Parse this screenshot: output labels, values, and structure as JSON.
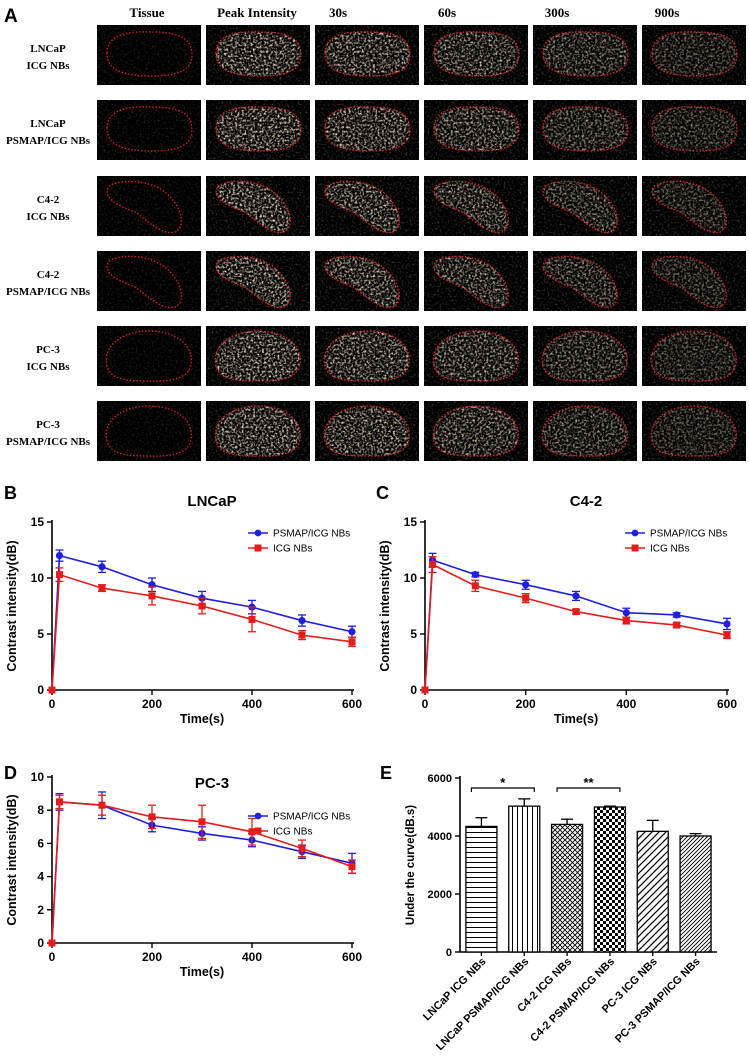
{
  "panel_a": {
    "label": "A",
    "columns": [
      "Tissue",
      "Peak Intensity",
      "30s",
      "60s",
      "300s",
      "900s"
    ],
    "rows": [
      {
        "line1": "LNCaP",
        "line2": "ICG NBs",
        "shape": "oval"
      },
      {
        "line1": "LNCaP",
        "line2": "PSMAP/ICG NBs",
        "shape": "oval"
      },
      {
        "line1": "C4-2",
        "line2": "ICG NBs",
        "shape": "c42"
      },
      {
        "line1": "C4-2",
        "line2": "PSMAP/ICG NBs",
        "shape": "c42"
      },
      {
        "line1": "PC-3",
        "line2": "ICG NBs",
        "shape": "pc3"
      },
      {
        "line1": "PC-3",
        "line2": "PSMAP/ICG NBs",
        "shape": "pc3"
      }
    ],
    "colors": {
      "background": "#000000",
      "speckle": "#e8c8a0",
      "roi": "#e0202a"
    }
  },
  "chart_data": [
    {
      "panel": "B",
      "type": "line",
      "title": "LNCaP",
      "xlabel": "Time(s)",
      "ylabel": "Contrast intensity(dB)",
      "xlim": [
        0,
        600
      ],
      "ylim": [
        0,
        15
      ],
      "xticks": [
        0,
        200,
        400,
        600
      ],
      "yticks": [
        0,
        5,
        10,
        15
      ],
      "x": [
        0,
        15,
        100,
        200,
        300,
        400,
        500,
        600
      ],
      "legend": "top-right",
      "series": [
        {
          "name": "PSMAP/ICG NBs",
          "color": "#1f1fe0",
          "marker": "circle",
          "values": [
            0,
            12.0,
            11.0,
            9.4,
            8.2,
            7.4,
            6.2,
            5.2
          ],
          "errors": [
            0,
            0.5,
            0.5,
            0.6,
            0.6,
            0.6,
            0.5,
            0.5
          ]
        },
        {
          "name": "ICG NBs",
          "color": "#e51c1c",
          "marker": "square",
          "values": [
            0,
            10.3,
            9.1,
            8.4,
            7.5,
            6.3,
            4.9,
            4.3
          ],
          "errors": [
            0,
            0.6,
            0.3,
            0.8,
            0.7,
            1.1,
            0.4,
            0.4
          ]
        }
      ]
    },
    {
      "panel": "C",
      "type": "line",
      "title": "C4-2",
      "xlabel": "Time(s)",
      "ylabel": "Contrast intensity(dB)",
      "xlim": [
        0,
        600
      ],
      "ylim": [
        0,
        15
      ],
      "xticks": [
        0,
        200,
        400,
        600
      ],
      "yticks": [
        0,
        5,
        10,
        15
      ],
      "x": [
        0,
        15,
        100,
        200,
        300,
        400,
        500,
        600
      ],
      "legend": "top-right",
      "series": [
        {
          "name": "PSMAP/ICG NBs",
          "color": "#1f1fe0",
          "marker": "circle",
          "values": [
            0,
            11.6,
            10.3,
            9.4,
            8.4,
            6.9,
            6.7,
            5.9
          ],
          "errors": [
            0,
            0.6,
            0.2,
            0.4,
            0.4,
            0.4,
            0.2,
            0.5
          ]
        },
        {
          "name": "ICG NBs",
          "color": "#e51c1c",
          "marker": "square",
          "values": [
            0,
            11.2,
            9.3,
            8.2,
            7.0,
            6.2,
            5.8,
            4.9
          ],
          "errors": [
            0,
            0.7,
            0.5,
            0.4,
            0.2,
            0.3,
            0.2,
            0.3
          ]
        }
      ]
    },
    {
      "panel": "D",
      "type": "line",
      "title": "PC-3",
      "xlabel": "Time(s)",
      "ylabel": "Contrast intensity(dB)",
      "xlim": [
        0,
        600
      ],
      "ylim": [
        0,
        10
      ],
      "xticks": [
        0,
        200,
        400,
        600
      ],
      "yticks": [
        0,
        2,
        4,
        6,
        8,
        10
      ],
      "x": [
        0,
        15,
        100,
        200,
        300,
        400,
        500,
        600
      ],
      "legend": "top-right",
      "series": [
        {
          "name": "PSMAP/ICG NBs",
          "color": "#1f1fe0",
          "marker": "circle",
          "values": [
            0,
            8.5,
            8.3,
            7.1,
            6.6,
            6.2,
            5.5,
            4.8
          ],
          "errors": [
            0,
            0.5,
            0.8,
            0.4,
            0.4,
            0.4,
            0.4,
            0.6
          ]
        },
        {
          "name": "ICG NBs",
          "color": "#e51c1c",
          "marker": "square",
          "values": [
            0,
            8.5,
            8.3,
            7.6,
            7.3,
            6.7,
            5.7,
            4.6
          ],
          "errors": [
            0,
            0.4,
            0.6,
            0.7,
            1.0,
            0.8,
            0.5,
            0.4
          ]
        }
      ]
    },
    {
      "panel": "E",
      "type": "bar",
      "ylabel": "Under the curve(dB.s)",
      "ylim": [
        0,
        6000
      ],
      "yticks": [
        0,
        2000,
        4000,
        6000
      ],
      "categories": [
        "LNCaP ICG NBs",
        "LNCaP PSMAP/ICG NBs",
        "C4-2 ICG NBs",
        "C4-2 PSMAP/ICG NBs",
        "PC-3 ICG NBs",
        "PC-3 PSMAP/ICG NBs"
      ],
      "values": [
        4330,
        5030,
        4400,
        5000,
        4160,
        4000
      ],
      "errors": [
        300,
        250,
        180,
        30,
        380,
        80
      ],
      "patterns": [
        "hlines",
        "vlines",
        "crosshatch",
        "checker",
        "diagonal",
        "diagonal-dense"
      ],
      "significance": [
        {
          "from": 0,
          "to": 1,
          "label": "*"
        },
        {
          "from": 2,
          "to": 3,
          "label": "**"
        }
      ]
    }
  ]
}
